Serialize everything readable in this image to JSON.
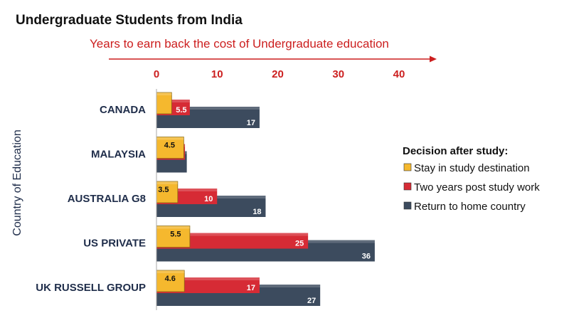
{
  "chart_data": {
    "type": "bar",
    "orientation": "horizontal",
    "title": "Undergraduate Students from India",
    "subtitle": "Years to earn back the cost of Undergraduate education",
    "ylabel": "Country of Education",
    "xlim": [
      0,
      40
    ],
    "xticks": [
      0,
      10,
      20,
      30,
      40
    ],
    "categories": [
      "CANADA",
      "MALAYSIA",
      "AUSTRALIA G8",
      "US PRIVATE",
      "UK RUSSELL GROUP"
    ],
    "series": [
      {
        "name": "Stay in study destination",
        "color": "#f5b82e",
        "values": [
          2.5,
          4.5,
          3.5,
          5.5,
          4.6
        ],
        "labels": [
          "",
          "4.5",
          "3.5",
          "5.5",
          "4.6"
        ]
      },
      {
        "name": "Two years post study work",
        "color": "#d62b35",
        "values": [
          5.5,
          4.7,
          10,
          25,
          17
        ],
        "labels": [
          "5.5",
          "",
          "10",
          "25",
          "17"
        ]
      },
      {
        "name": "Return to home country",
        "color": "#3c4b5e",
        "values": [
          17,
          5.0,
          18,
          36,
          27
        ],
        "labels": [
          "17",
          "",
          "18",
          "36",
          "27"
        ]
      }
    ],
    "legend": {
      "title": "Decision after study:",
      "position": "right"
    },
    "grid": false
  }
}
